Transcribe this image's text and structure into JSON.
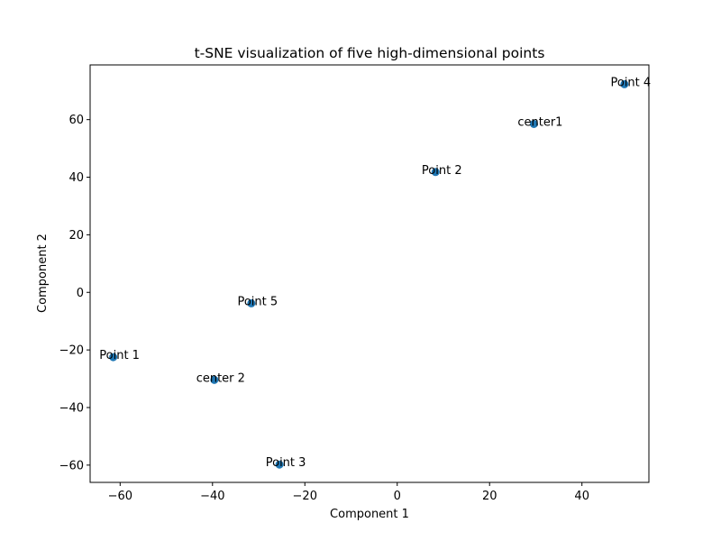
{
  "chart_data": {
    "type": "scatter",
    "title": "t-SNE visualization of five high-dimensional points",
    "xlabel": "Component 1",
    "ylabel": "Component 2",
    "xlim": [
      -66.5,
      54.5
    ],
    "ylim": [
      -66,
      79
    ],
    "xticks": [
      -60,
      -40,
      -20,
      0,
      20,
      40
    ],
    "yticks": [
      -60,
      -40,
      -20,
      0,
      20,
      40,
      60
    ],
    "grid": false,
    "marker_color": "#1f77b4",
    "points": [
      {
        "label": "Point 1",
        "x": -61.5,
        "y": -22.5
      },
      {
        "label": "Point 2",
        "x": 8.3,
        "y": 41.8
      },
      {
        "label": "Point 3",
        "x": -25.5,
        "y": -59.8
      },
      {
        "label": "Point 4",
        "x": 49.2,
        "y": 72.3
      },
      {
        "label": "Point 5",
        "x": -31.6,
        "y": -3.8
      },
      {
        "label": "center1",
        "x": 29.6,
        "y": 58.5
      },
      {
        "label": "center 2",
        "x": -39.6,
        "y": -30.4
      }
    ]
  }
}
